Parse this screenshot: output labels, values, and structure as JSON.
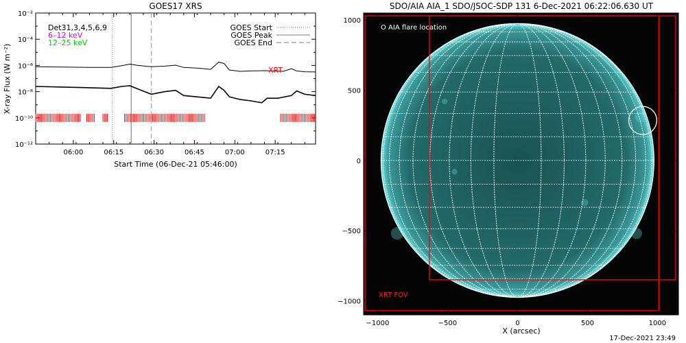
{
  "goes_panel": {
    "title": "GOES17 XRS",
    "legend": {
      "det_label": "Det31,3,4,5,6,9",
      "band_low": "6–12 keV",
      "band_high": "12–25 keV",
      "start_label": "GOES Start",
      "peak_label": "GOES Peak",
      "end_label": "GOES End",
      "xrt_label": "XRT"
    },
    "colors": {
      "band_low": "#e000e0",
      "band_high": "#00d000",
      "xrt": "#ff0000"
    }
  },
  "aia_panel": {
    "title": "SDO/AIA AIA_1 SDO/JSOC-SDP 131  6-Dec-2021 06:22:06.630 UT",
    "flare_legend": "O AIA flare location",
    "fov_label": "XRT FOV",
    "footer": "17-Dec-2021 23:49",
    "colors": {
      "disk": "#1f5a5a",
      "grid": "#ffffff",
      "fov": "#ff0000"
    }
  },
  "chart_data": [
    {
      "type": "line",
      "title": "GOES17 XRS",
      "xlabel": "Start Time (06-Dec-21 05:46:00)",
      "ylabel": "X-ray Flux (W m⁻²)",
      "x_ticks": [
        "06:00",
        "06:15",
        "06:30",
        "06:45",
        "07:00",
        "07:15"
      ],
      "x_tick_minutes": [
        14,
        29,
        44,
        59,
        74,
        89
      ],
      "xlim_minutes": [
        0,
        104
      ],
      "y_scale": "log",
      "ylim": [
        1e-12,
        0.01
      ],
      "y_ticks": [
        "10⁻²",
        "10⁻⁴",
        "10⁻⁶",
        "10⁻⁸",
        "10⁻¹⁰",
        "10⁻¹²"
      ],
      "y_tick_exponents": [
        -2,
        -4,
        -6,
        -8,
        -10,
        -12
      ],
      "markers_minutes": {
        "goes_start": 28.5,
        "goes_peak": 35.5,
        "goes_end": 43
      },
      "series": [
        {
          "name": "GOES Peak",
          "x_minutes": [
            0,
            10,
            20,
            28,
            32,
            35,
            38,
            43,
            48,
            52,
            55,
            60,
            65,
            68,
            70,
            72,
            74,
            76,
            80,
            85,
            92,
            95,
            97,
            100,
            104
          ],
          "log10_flux": [
            -6.1,
            -6.12,
            -6.15,
            -6.15,
            -6.02,
            -5.9,
            -6.0,
            -6.1,
            -6.05,
            -5.98,
            -6.15,
            -6.2,
            -6.3,
            -5.75,
            -5.85,
            -6.35,
            -6.4,
            -6.45,
            -6.42,
            -6.4,
            -6.45,
            -6.25,
            -6.42,
            -6.48,
            -6.5
          ]
        },
        {
          "name": "GOES Peak (12–25 keV)",
          "x_minutes": [
            0,
            10,
            20,
            28,
            32,
            35,
            38,
            43,
            48,
            52,
            55,
            60,
            65,
            68,
            70,
            72,
            76,
            80,
            84,
            86,
            90,
            95,
            97,
            100,
            104
          ],
          "log10_flux": [
            -7.6,
            -7.65,
            -7.7,
            -7.75,
            -7.6,
            -7.55,
            -7.8,
            -8.2,
            -8.0,
            -7.9,
            -8.3,
            -8.4,
            -8.5,
            -7.6,
            -7.9,
            -8.4,
            -8.6,
            -8.7,
            -8.85,
            -8.5,
            -8.5,
            -8.3,
            -7.95,
            -8.2,
            -8.3
          ]
        }
      ],
      "xrt_intervals_minutes": [
        [
          0,
          17
        ],
        [
          19,
          22
        ],
        [
          25,
          27
        ],
        [
          33,
          63
        ],
        [
          91,
          104
        ]
      ],
      "xrt_level": 1e-10
    },
    {
      "type": "scatter",
      "title": "SDO/AIA AIA_1 SDO/JSOC-SDP 131  6-Dec-2021 06:22:06.630 UT",
      "xlabel": "X (arcsec)",
      "ylabel": "",
      "xlim": [
        -1100,
        1150
      ],
      "ylim": [
        -1100,
        1050
      ],
      "x_ticks": [
        -1000,
        -500,
        0,
        500,
        1000
      ],
      "y_ticks": [
        -1000,
        -500,
        0,
        500,
        1000
      ],
      "solar_radius_arcsec": 975,
      "grid": true,
      "flare_location": {
        "x": 895,
        "y": 285,
        "radius": 100
      },
      "fov_rectangles": [
        {
          "x0": -1090,
          "y0": -1070,
          "x1": 1010,
          "y1": 1030
        },
        {
          "x0": -630,
          "y0": -850,
          "x1": 1130,
          "y1": 1030
        }
      ]
    }
  ]
}
